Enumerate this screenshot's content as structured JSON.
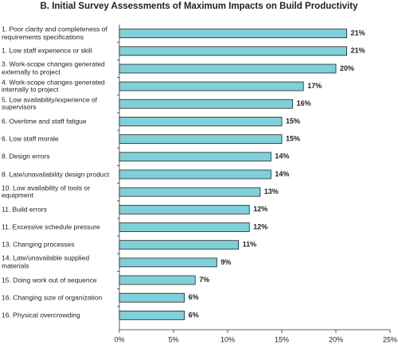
{
  "chart_data": {
    "type": "bar",
    "orientation": "horizontal",
    "title": "B. Initial Survey Assessments of Maximum Impacts on Build Productivity",
    "categories": [
      "1. Poor clarity and completeness of requirements specifications",
      "1. Low staff experience or skill",
      "3. Work-scope changes generated externally to project",
      "4. Work-scope changes generated internally to project",
      "5. Low availability/experience of supervisors",
      "6. Overtime and staff fatigue",
      "6. Low staff morale",
      "8. Design errors",
      "8. Late/unavailability design product",
      "10. Low availability of tools or equipment",
      "11. Build errors",
      "11. Excessive schedule pressure",
      "13. Changing processes",
      "14. Late/unavailable supplied materials",
      "15. Doing work out of sequence",
      "16. Changing size of organization",
      "16. Physical overcrowding"
    ],
    "values": [
      21,
      21,
      20,
      17,
      16,
      15,
      15,
      14,
      14,
      13,
      12,
      12,
      11,
      9,
      7,
      6,
      6
    ],
    "value_labels": [
      "21%",
      "21%",
      "20%",
      "17%",
      "16%",
      "15%",
      "15%",
      "14%",
      "14%",
      "13%",
      "12%",
      "12%",
      "11%",
      "9%",
      "7%",
      "6%",
      "6%"
    ],
    "color": "#7fd0d8",
    "xlim": [
      0,
      25
    ],
    "xticks": [
      {
        "value": 0,
        "label": "0%"
      },
      {
        "value": 5,
        "label": "5%"
      },
      {
        "value": 10,
        "label": "10%"
      },
      {
        "value": 15,
        "label": "15%"
      },
      {
        "value": 20,
        "label": "20%"
      },
      {
        "value": 25,
        "label": "25%"
      }
    ]
  }
}
